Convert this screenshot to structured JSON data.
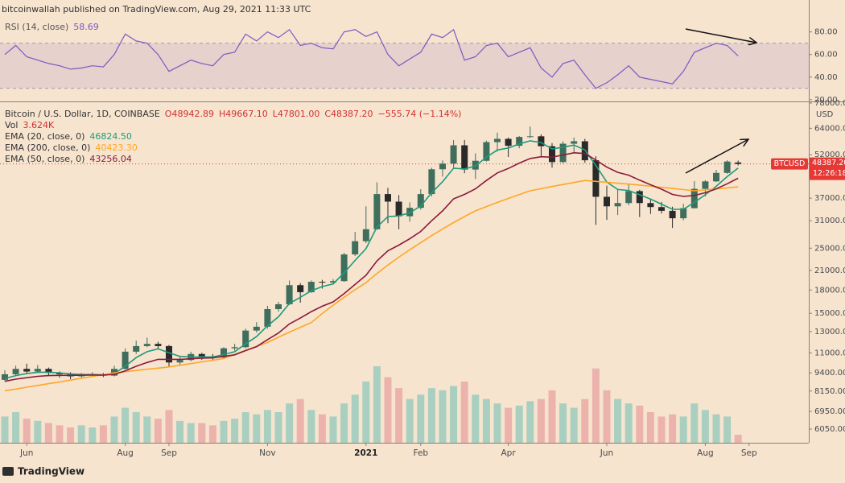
{
  "header": "bitcoinwallah published on TradingView.com, Aug 29, 2021 11:33 UTC",
  "footer": "TradingView",
  "chart_data": [
    {
      "type": "line",
      "name": "RSI (14, close)",
      "legend_value": "58.69",
      "color": "#7e57c2",
      "values": [
        60,
        68,
        58,
        55,
        52,
        50,
        47,
        48,
        50,
        49,
        60,
        78,
        72,
        70,
        60,
        45,
        50,
        55,
        52,
        50,
        60,
        62,
        78,
        72,
        80,
        75,
        82,
        68,
        70,
        66,
        65,
        80,
        82,
        76,
        80,
        60,
        50,
        56,
        62,
        78,
        75,
        82,
        55,
        58,
        68,
        70,
        58,
        62,
        66,
        48,
        40,
        52,
        55,
        42,
        30,
        35,
        42,
        50,
        40,
        38,
        36,
        34,
        45,
        62,
        66,
        70,
        68,
        58.69,
        null,
        null,
        null,
        null,
        null
      ],
      "ylim": [
        22,
        94
      ],
      "yticks": [
        {
          "value": 80,
          "label": "80.00"
        },
        {
          "value": 60,
          "label": "60.00"
        },
        {
          "value": 40,
          "label": "40.00"
        },
        {
          "value": 20,
          "label": "20.00"
        }
      ],
      "bands": [
        30,
        70
      ]
    },
    {
      "type": "candlestick",
      "title": "Bitcoin / U.S. Dollar, 1D, COINBASE",
      "ohlc_labels": [
        "O48942.89",
        "H49667.10",
        "L47801.00",
        "C48387.20"
      ],
      "change_label": "−555.74 (−1.14%)",
      "categories": [
        null,
        null,
        "Jun",
        null,
        null,
        null,
        null,
        null,
        null,
        null,
        null,
        "Aug",
        null,
        null,
        null,
        "Sep",
        null,
        null,
        null,
        null,
        null,
        null,
        null,
        null,
        "Nov",
        null,
        null,
        null,
        null,
        null,
        null,
        null,
        null,
        "2021",
        null,
        null,
        null,
        null,
        "Feb",
        null,
        null,
        null,
        null,
        null,
        null,
        null,
        "Apr",
        null,
        null,
        null,
        null,
        null,
        null,
        null,
        null,
        "Jun",
        null,
        null,
        null,
        null,
        null,
        null,
        null,
        null,
        "Aug",
        null,
        null,
        null,
        "Sep",
        null,
        null,
        null,
        null
      ],
      "open": [
        8900,
        9300,
        9700,
        9500,
        9700,
        9400,
        9300,
        9150,
        9250,
        9300,
        9200,
        9700,
        11100,
        11600,
        11800,
        11600,
        10200,
        10400,
        10900,
        10700,
        10600,
        11400,
        11500,
        13100,
        13500,
        15500,
        16100,
        18700,
        17700,
        19200,
        19100,
        19300,
        23800,
        26400,
        29000,
        38200,
        36000,
        32100,
        34300,
        38200,
        46400,
        48500,
        56000,
        46300,
        49600,
        57400,
        58900,
        55800,
        59800,
        60100,
        55600,
        49100,
        56700,
        57800,
        49800,
        37400,
        34700,
        35600,
        39100,
        35600,
        34500,
        33500,
        31600,
        34200,
        39800,
        42200,
        45100,
        48942.89,
        null,
        null,
        null,
        null,
        null
      ],
      "high": [
        9600,
        9950,
        10100,
        10000,
        9800,
        9500,
        9450,
        9400,
        9450,
        9400,
        9950,
        11400,
        12100,
        12400,
        12000,
        11700,
        10700,
        11100,
        11000,
        10900,
        11500,
        11800,
        13300,
        14000,
        15900,
        16400,
        19400,
        19000,
        19400,
        19500,
        19600,
        24100,
        28400,
        34700,
        41900,
        40100,
        37900,
        35800,
        39700,
        47000,
        49700,
        58300,
        58400,
        52600,
        58100,
        61800,
        59500,
        60200,
        64900,
        61000,
        57000,
        57800,
        59500,
        58900,
        51400,
        40800,
        39500,
        41300,
        39500,
        36600,
        35900,
        34600,
        35400,
        42300,
        42600,
        46200,
        49800,
        49667.1,
        null,
        null,
        null,
        null,
        null
      ],
      "low": [
        8800,
        9150,
        9350,
        9400,
        9200,
        9050,
        8950,
        9050,
        9150,
        9100,
        9150,
        9650,
        10900,
        11500,
        11300,
        9900,
        10000,
        10300,
        10400,
        10400,
        10500,
        11200,
        11400,
        12900,
        13300,
        15200,
        16000,
        16300,
        17600,
        18200,
        18800,
        19200,
        23500,
        26000,
        28900,
        30400,
        29000,
        30800,
        33800,
        37500,
        43800,
        47100,
        45000,
        43000,
        49300,
        53300,
        51100,
        54700,
        59300,
        51000,
        47000,
        48700,
        53000,
        48800,
        30000,
        31200,
        32400,
        35000,
        31900,
        32700,
        32800,
        29300,
        31100,
        34100,
        37500,
        42000,
        44800,
        47801,
        null,
        null,
        null,
        null,
        null
      ],
      "close": [
        9300,
        9700,
        9500,
        9700,
        9400,
        9300,
        9150,
        9250,
        9300,
        9200,
        9700,
        11100,
        11600,
        11800,
        11600,
        10200,
        10400,
        10900,
        10700,
        10600,
        11400,
        11500,
        13100,
        13500,
        15500,
        16100,
        18700,
        17700,
        19200,
        19100,
        19300,
        23800,
        26400,
        29000,
        38200,
        36000,
        32100,
        34300,
        38200,
        46400,
        48500,
        56000,
        46300,
        49600,
        57400,
        58900,
        55800,
        59800,
        60100,
        55600,
        49100,
        56700,
        57800,
        49800,
        37400,
        34700,
        35600,
        39100,
        35600,
        34500,
        33500,
        31600,
        34200,
        39800,
        42200,
        45100,
        49300,
        48387.2,
        null,
        null,
        null,
        null,
        null
      ],
      "up_color": "#3f6e5c",
      "down_color": "#2a2a2a",
      "change_color": "#d32f2f",
      "log_scale": true,
      "ylim": [
        5435,
        78000
      ],
      "y_unit": "USD",
      "yticks": [
        {
          "value": 78000,
          "label": "78000.00"
        },
        {
          "value": 64000,
          "label": "64000.00"
        },
        {
          "value": 52000,
          "label": "52000.00"
        },
        {
          "value": 37000,
          "label": "37000.00"
        },
        {
          "value": 31000,
          "label": "31000.00"
        },
        {
          "value": 25000,
          "label": "25000.00"
        },
        {
          "value": 21000,
          "label": "21000.00"
        },
        {
          "value": 18000,
          "label": "18000.00"
        },
        {
          "value": 15000,
          "label": "15000.00"
        },
        {
          "value": 13000,
          "label": "13000.00"
        },
        {
          "value": 11000,
          "label": "11000.00"
        },
        {
          "value": 9400,
          "label": "9400.00"
        },
        {
          "value": 8150,
          "label": "8150.00"
        },
        {
          "value": 6950,
          "label": "6950.00"
        },
        {
          "value": 6050,
          "label": "6050.00"
        }
      ],
      "price_tag": {
        "symbol": "BTCUSD",
        "label": "48387.20",
        "countdown": "12:26:18",
        "color": "#e53935"
      },
      "series": [
        {
          "name": "EMA (20, close, 0)",
          "legend_value": "46824.50",
          "color": "#1e9a7e",
          "values": [
            9000,
            9200,
            9350,
            9450,
            9450,
            9400,
            9320,
            9280,
            9280,
            9260,
            9350,
            9900,
            10600,
            11100,
            11350,
            11000,
            10700,
            10650,
            10650,
            10650,
            10850,
            11100,
            11800,
            12500,
            13600,
            14600,
            16200,
            17000,
            17900,
            18500,
            18900,
            20600,
            22700,
            24900,
            29500,
            32000,
            32200,
            33000,
            34800,
            38600,
            42100,
            46800,
            46500,
            47600,
            51000,
            54000,
            54800,
            56600,
            58000,
            57200,
            54400,
            55200,
            56100,
            54000,
            47800,
            42000,
            39600,
            39300,
            38000,
            36700,
            35300,
            33900,
            33900,
            35800,
            38000,
            40600,
            43800,
            46824.5,
            null,
            null,
            null,
            null,
            null
          ]
        },
        {
          "name": "EMA (200, close, 0)",
          "legend_value": "40423.30",
          "color": "#ffa726",
          "values": [
            8170,
            8280,
            8400,
            8520,
            8640,
            8750,
            8880,
            9010,
            9140,
            9270,
            9400,
            9490,
            9580,
            9670,
            9760,
            9850,
            9980,
            10110,
            10250,
            10380,
            10520,
            10870,
            11220,
            11580,
            11930,
            12430,
            12940,
            13440,
            13950,
            14970,
            15990,
            17000,
            18040,
            19070,
            20480,
            21890,
            23290,
            24700,
            26100,
            27580,
            29060,
            30540,
            32020,
            33500,
            34640,
            35780,
            36920,
            38060,
            39200,
            39860,
            40520,
            41180,
            41840,
            42500,
            42200,
            41900,
            41600,
            41300,
            41000,
            40640,
            40280,
            39920,
            39560,
            39200,
            39500,
            39800,
            40100,
            40423.3,
            null,
            null,
            null,
            null,
            null
          ]
        },
        {
          "name": "EMA (50, close, 0)",
          "legend_value": "43256.04",
          "color": "#8b1a3a",
          "values": [
            8800,
            8950,
            9050,
            9150,
            9200,
            9220,
            9220,
            9230,
            9240,
            9240,
            9290,
            9550,
            9900,
            10200,
            10450,
            10450,
            10450,
            10500,
            10550,
            10570,
            10700,
            10830,
            11200,
            11550,
            12200,
            12850,
            13800,
            14450,
            15200,
            15850,
            16400,
            17500,
            18800,
            20200,
            22600,
            24500,
            25600,
            26900,
            28500,
            31000,
            33500,
            36800,
            38100,
            39800,
            42500,
            45100,
            46700,
            48700,
            50500,
            51200,
            51000,
            51900,
            52800,
            52500,
            49900,
            47200,
            45300,
            44300,
            42600,
            41100,
            39700,
            38100,
            37500,
            37800,
            38600,
            39800,
            41400,
            43256.04,
            null,
            null,
            null,
            null,
            null
          ]
        }
      ],
      "volume": {
        "name": "Vol",
        "legend_value": "3.624K",
        "up_color": "#a9cfc0",
        "down_color": "#ecb3ad",
        "values": [
          12,
          14,
          11,
          10,
          9,
          8,
          7,
          8,
          7,
          8,
          12,
          16,
          14,
          12,
          11,
          15,
          10,
          9,
          9,
          8,
          10,
          11,
          14,
          13,
          15,
          14,
          18,
          20,
          15,
          13,
          12,
          18,
          22,
          28,
          35,
          30,
          25,
          20,
          22,
          25,
          24,
          26,
          28,
          22,
          20,
          18,
          16,
          17,
          19,
          20,
          24,
          18,
          16,
          20,
          34,
          24,
          20,
          18,
          17,
          14,
          12,
          13,
          12,
          18,
          15,
          13,
          12,
          3.624,
          null,
          null,
          null,
          null,
          null
        ]
      }
    }
  ]
}
